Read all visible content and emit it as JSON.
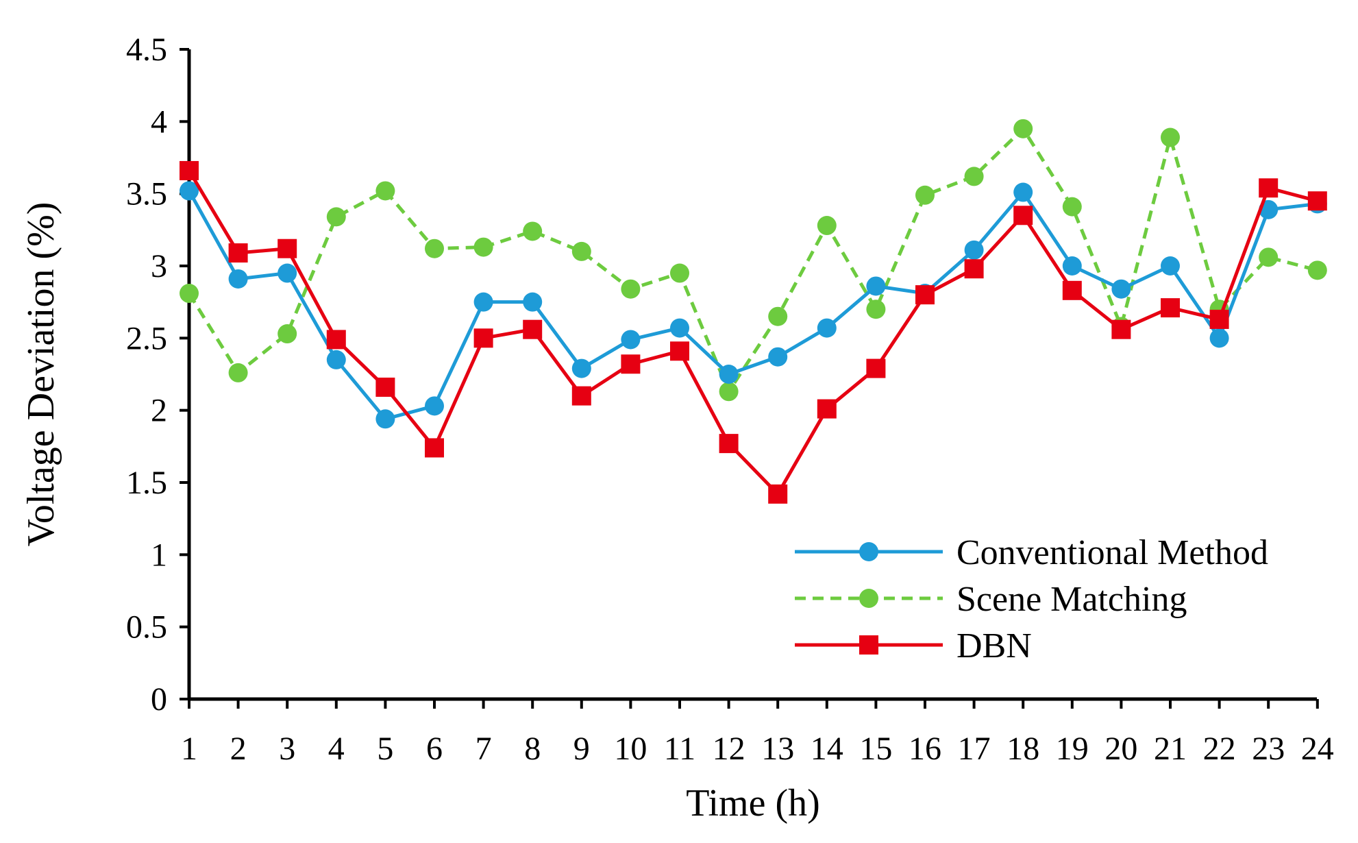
{
  "chart_data": {
    "type": "line",
    "title": "",
    "xlabel": "Time (h)",
    "ylabel": "Voltage Deviation (%)",
    "ylim": [
      0,
      4.5
    ],
    "yticks": [
      "0",
      "0.5",
      "1",
      "1.5",
      "2",
      "2.5",
      "3",
      "3.5",
      "4",
      "4.5"
    ],
    "x": [
      1,
      2,
      3,
      4,
      5,
      6,
      7,
      8,
      9,
      10,
      11,
      12,
      13,
      14,
      15,
      16,
      17,
      18,
      19,
      20,
      21,
      22,
      23,
      24
    ],
    "xticks": [
      "1",
      "2",
      "3",
      "4",
      "5",
      "6",
      "7",
      "8",
      "9",
      "10",
      "11",
      "12",
      "13",
      "14",
      "15",
      "16",
      "17",
      "18",
      "19",
      "20",
      "21",
      "22",
      "23",
      "24"
    ],
    "grid": false,
    "legend_position": "bottom-right",
    "series": [
      {
        "name": "Conventional Method",
        "color": "#1E9BD7",
        "style": "solid",
        "marker": "circle",
        "values": [
          3.52,
          2.91,
          2.95,
          2.35,
          1.94,
          2.03,
          2.75,
          2.75,
          2.29,
          2.49,
          2.57,
          2.25,
          2.37,
          2.57,
          2.86,
          2.81,
          3.11,
          3.51,
          3.0,
          2.84,
          3.0,
          2.5,
          3.39,
          3.43
        ]
      },
      {
        "name": "Scene Matching",
        "color": "#6DCB3F",
        "style": "dashed",
        "marker": "circle",
        "values": [
          2.81,
          2.26,
          2.53,
          3.34,
          3.52,
          3.12,
          3.13,
          3.24,
          3.1,
          2.84,
          2.95,
          2.13,
          2.65,
          3.28,
          2.7,
          3.49,
          3.62,
          3.95,
          3.41,
          2.58,
          3.89,
          2.7,
          3.06,
          2.97
        ]
      },
      {
        "name": "DBN",
        "color": "#E60012",
        "style": "solid",
        "marker": "square",
        "values": [
          3.66,
          3.09,
          3.12,
          2.49,
          2.16,
          1.74,
          2.5,
          2.56,
          2.1,
          2.32,
          2.41,
          1.77,
          1.42,
          2.01,
          2.29,
          2.8,
          2.98,
          3.35,
          2.83,
          2.56,
          2.71,
          2.63,
          3.54,
          3.45
        ]
      }
    ]
  }
}
